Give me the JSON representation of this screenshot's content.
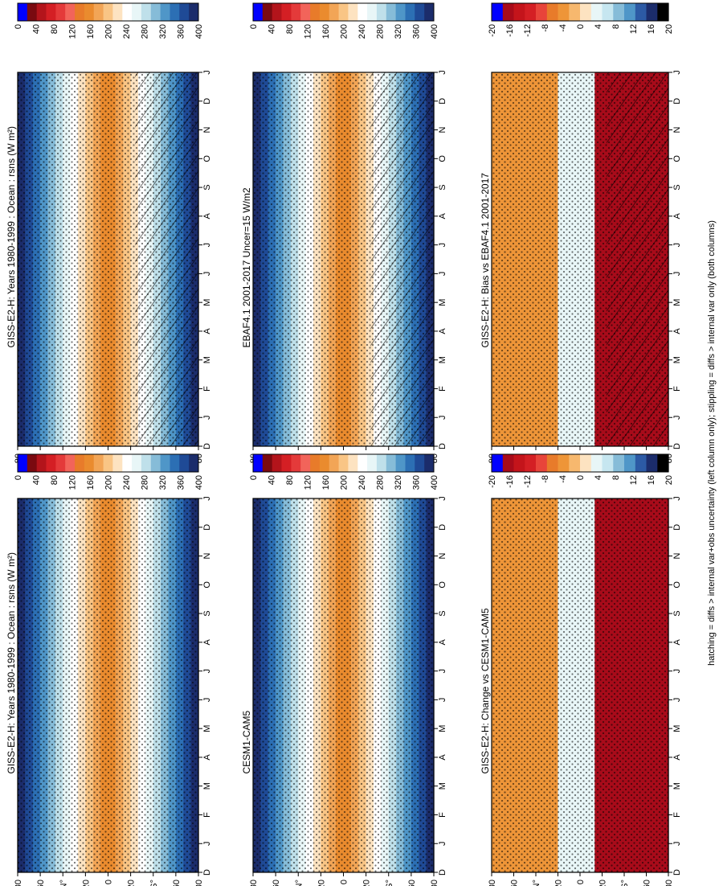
{
  "figure": {
    "footnote": "hatching = diffs > internal var+obs uncertainty (left column only); stippling = diffs > internal var only (both columns)"
  },
  "colors": {
    "abs_scale": [
      "#1b2c6b",
      "#1f4a96",
      "#2c6fb4",
      "#4f96c8",
      "#86bcd8",
      "#bfe0ea",
      "#e8f6f7",
      "#ffffff",
      "#fde3c1",
      "#f9c585",
      "#f2a556",
      "#ea8b2e",
      "#e87b2a",
      "#f2645a",
      "#e43a3a",
      "#d41f24",
      "#b3141b",
      "#7a0a10",
      "#0000ff"
    ],
    "diff_scale": [
      "#000000",
      "#1b2c6b",
      "#2c5aa5",
      "#4f96c8",
      "#86bcd8",
      "#c6e6f0",
      "#e8f6f7",
      "#fde3c1",
      "#f7b86e",
      "#ee9538",
      "#e87b2a",
      "#e8443a",
      "#d41f24",
      "#c4141b",
      "#a80b1a",
      "#0000ff"
    ]
  },
  "chart_data": [
    {
      "type": "heatmap",
      "title": "GISS-E2-H: Years 1980-1999 : Ocean : rsns (W m²)",
      "x_ticks": [
        "D",
        "J",
        "F",
        "M",
        "A",
        "M",
        "J",
        "J",
        "A",
        "S",
        "O",
        "N",
        "D",
        "J"
      ],
      "y_ticks": [
        "80",
        "60",
        "N°",
        "20",
        "0",
        "20",
        "S°",
        "60",
        "80"
      ],
      "colorbar_ticks": [
        "400",
        "360",
        "320",
        "280",
        "240",
        "200",
        "160",
        "120",
        "80",
        "40",
        "0"
      ],
      "overlay": "hatching+stippling"
    },
    {
      "type": "heatmap",
      "title": "GISS-E2-H: Years 1980-1999 : Ocean : rsns (W m²)",
      "x_ticks": [
        "D",
        "J",
        "F",
        "M",
        "A",
        "M",
        "J",
        "J",
        "A",
        "S",
        "O",
        "N",
        "D",
        "J"
      ],
      "y_ticks": [
        "80",
        "60",
        "N°",
        "20",
        "0",
        "20",
        "S°",
        "60",
        "80"
      ],
      "colorbar_ticks": [
        "400",
        "360",
        "320",
        "280",
        "240",
        "200",
        "160",
        "120",
        "80",
        "40",
        "0"
      ],
      "overlay": "stippling"
    },
    {
      "type": "heatmap",
      "title": "EBAF4.1 2001-2017 Uncer=15 W/m2",
      "x_ticks": [
        "D",
        "J",
        "F",
        "M",
        "A",
        "M",
        "J",
        "J",
        "A",
        "S",
        "O",
        "N",
        "D",
        "J"
      ],
      "y_ticks": [
        "80",
        "60",
        "N°",
        "20",
        "0",
        "20",
        "S°",
        "60",
        "80"
      ],
      "colorbar_ticks": [
        "400",
        "360",
        "320",
        "280",
        "240",
        "200",
        "160",
        "120",
        "80",
        "40",
        "0"
      ],
      "overlay": "hatching+stippling"
    },
    {
      "type": "heatmap",
      "title": "CESM1-CAM5",
      "x_ticks": [
        "D",
        "J",
        "F",
        "M",
        "A",
        "M",
        "J",
        "J",
        "A",
        "S",
        "O",
        "N",
        "D",
        "J"
      ],
      "y_ticks": [
        "80",
        "60",
        "N°",
        "20",
        "0",
        "20",
        "S°",
        "60",
        "80"
      ],
      "colorbar_ticks": [
        "400",
        "360",
        "320",
        "280",
        "240",
        "200",
        "160",
        "120",
        "80",
        "40",
        "0"
      ],
      "overlay": "stippling"
    },
    {
      "type": "heatmap",
      "title": "GISS-E2-H: Bias vs EBAF4.1 2001-2017",
      "x_ticks": [
        "D",
        "J",
        "F",
        "M",
        "A",
        "M",
        "J",
        "J",
        "A",
        "S",
        "O",
        "N",
        "D",
        "J"
      ],
      "y_ticks": [
        "80",
        "60",
        "N°",
        "20",
        "0",
        "20",
        "S°",
        "60",
        "80"
      ],
      "colorbar_ticks": [
        "20",
        "16",
        "12",
        "8",
        "4",
        "0",
        "-4",
        "-8",
        "-12",
        "-16",
        "-20"
      ],
      "overlay": "hatching+stippling"
    },
    {
      "type": "heatmap",
      "title": "GISS-E2-H: Change vs CESM1-CAM5",
      "x_ticks": [
        "D",
        "J",
        "F",
        "M",
        "A",
        "M",
        "J",
        "J",
        "A",
        "S",
        "O",
        "N",
        "D",
        "J"
      ],
      "y_ticks": [
        "80",
        "60",
        "N°",
        "20",
        "0",
        "20",
        "S°",
        "60",
        "80"
      ],
      "colorbar_ticks": [
        "20",
        "16",
        "12",
        "8",
        "4",
        "0",
        "-4",
        "-8",
        "-12",
        "-16",
        "-20"
      ],
      "overlay": "stippling"
    }
  ]
}
